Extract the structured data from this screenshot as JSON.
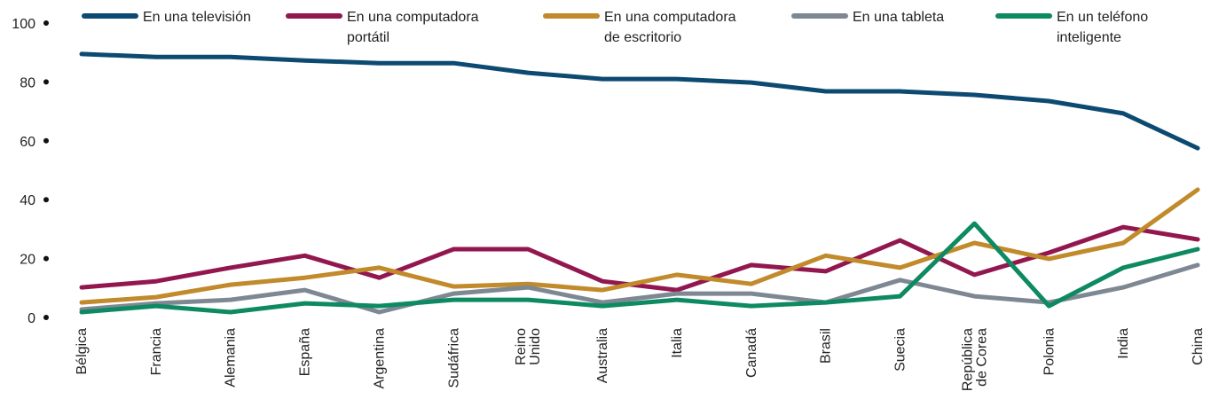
{
  "chart_data": {
    "type": "line",
    "categories": [
      "Bélgica",
      "Francia",
      "Alemania",
      "España",
      "Argentina",
      "Sudáfrica",
      "Reino Unido",
      "Australia",
      "Italia",
      "Canadá",
      "Brasil",
      "Suecia",
      "República de Corea",
      "Polonia",
      "India",
      "China"
    ],
    "series": [
      {
        "name": "En una televisión",
        "color": "#0d4a72",
        "values": [
          89.5,
          88.5,
          88.5,
          87.3,
          86.4,
          86.4,
          83.1,
          81,
          81,
          79.8,
          76.8,
          76.8,
          75.6,
          73.5,
          69.3,
          57.5
        ]
      },
      {
        "name": "En una computadora portátil",
        "color": "#93174f",
        "values": [
          10.2,
          12.3,
          16.9,
          21,
          13.5,
          23.2,
          23.2,
          12.3,
          9.3,
          17.8,
          15.7,
          26.2,
          14.5,
          22,
          30.7,
          26.5
        ]
      },
      {
        "name": "En una computadora de escritorio",
        "color": "#c18a2b",
        "values": [
          5.1,
          6.9,
          11.1,
          13.5,
          16.9,
          10.5,
          11.4,
          9.3,
          14.5,
          11.4,
          21,
          16.9,
          25.3,
          19.9,
          25.3,
          43.4
        ]
      },
      {
        "name": "En una tableta",
        "color": "#7e8893",
        "values": [
          2.7,
          4.8,
          6,
          9.3,
          1.8,
          8.1,
          10.2,
          5.1,
          8.1,
          8.1,
          5.1,
          12.7,
          7.2,
          5.1,
          10.2,
          17.8
        ]
      },
      {
        "name": "En un teléfono inteligente",
        "color": "#0e8a63",
        "values": [
          1.8,
          3.9,
          1.8,
          4.8,
          3.9,
          6,
          6,
          3.9,
          6,
          3.9,
          5.1,
          7.2,
          31.9,
          3.9,
          16.9,
          23.2
        ]
      }
    ],
    "ylim": [
      0,
      100
    ],
    "yticks": [
      0,
      20,
      40,
      60,
      80,
      100
    ],
    "grid": false,
    "legend": "top"
  }
}
